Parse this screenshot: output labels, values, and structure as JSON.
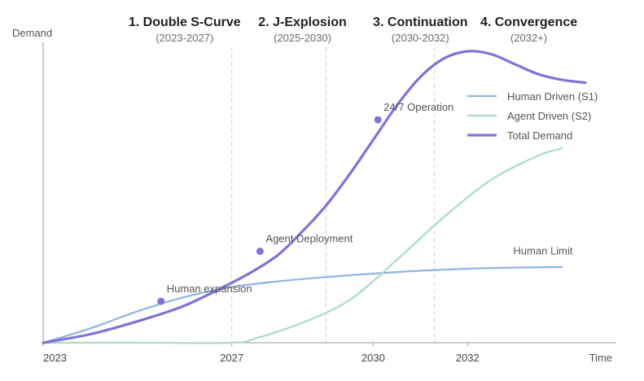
{
  "chart_data": {
    "type": "line",
    "title": "",
    "xlabel": "Time",
    "ylabel": "Demand",
    "xlim": [
      2023,
      2035
    ],
    "ylim": [
      0,
      100
    ],
    "grid": false,
    "legend_position": "top-right",
    "x_ticks": [
      {
        "value": 2023,
        "label": "2023"
      },
      {
        "value": 2027,
        "label": "2027"
      },
      {
        "value": 2030,
        "label": "2030"
      },
      {
        "value": 2032,
        "label": "2032"
      }
    ],
    "phases": [
      {
        "title": "1. Double S-Curve",
        "range": "(2023-2027)",
        "x": 2026
      },
      {
        "title": "2. J-Explosion",
        "range": "(2025-2030)",
        "x": 2028.5
      },
      {
        "title": "3. Continuation",
        "range": "(2030-2032)",
        "x": 2031
      },
      {
        "title": "4. Convergence",
        "range": "(2032+)",
        "x": 2033.3
      }
    ],
    "phase_dividers": [
      2027,
      2029,
      2031.3
    ],
    "series": [
      {
        "name": "Human Driven (S1)",
        "color": "#8fb4e3",
        "width": 2.2,
        "x": [
          2023,
          2024,
          2025,
          2026,
          2027,
          2028,
          2029,
          2030,
          2031,
          2032,
          2033,
          2034
        ],
        "values": [
          0,
          5,
          11,
          16,
          19.5,
          21.5,
          23,
          24.2,
          25.2,
          25.9,
          26.3,
          26.5
        ]
      },
      {
        "name": "Agent Driven (S2)",
        "color": "#a8dcc8",
        "width": 2.2,
        "x": [
          2023,
          2025,
          2027,
          2027.5,
          2028.5,
          2029.5,
          2030.5,
          2031.5,
          2032.5,
          2033.5,
          2034
        ],
        "values": [
          0,
          0,
          0,
          1.5,
          7,
          15,
          29,
          44,
          57,
          65.5,
          68
        ]
      },
      {
        "name": "Total Demand",
        "color": "#7f73d6",
        "width": 3.2,
        "x": [
          2023,
          2024,
          2025,
          2026,
          2027,
          2027.5,
          2028,
          2028.5,
          2029,
          2029.5,
          2030,
          2030.5,
          2031,
          2031.5,
          2032,
          2032.5,
          2033,
          2033.5,
          2034,
          2034.5
        ],
        "values": [
          0,
          3,
          7.5,
          13,
          21,
          25.5,
          31,
          39,
          48,
          59,
          71,
          83,
          93,
          99.5,
          102,
          101,
          97.5,
          94,
          92,
          91
        ]
      }
    ],
    "points": [
      {
        "x": 2025.5,
        "y": 14.5,
        "label": "Human expansion"
      },
      {
        "x": 2027.6,
        "y": 32,
        "label": "Agent Deployment"
      },
      {
        "x": 2030.1,
        "y": 78,
        "label": "24/7 Operation"
      }
    ],
    "annotations": [
      {
        "text": "Human Limit",
        "x": 2033.6,
        "y": 28
      }
    ]
  }
}
